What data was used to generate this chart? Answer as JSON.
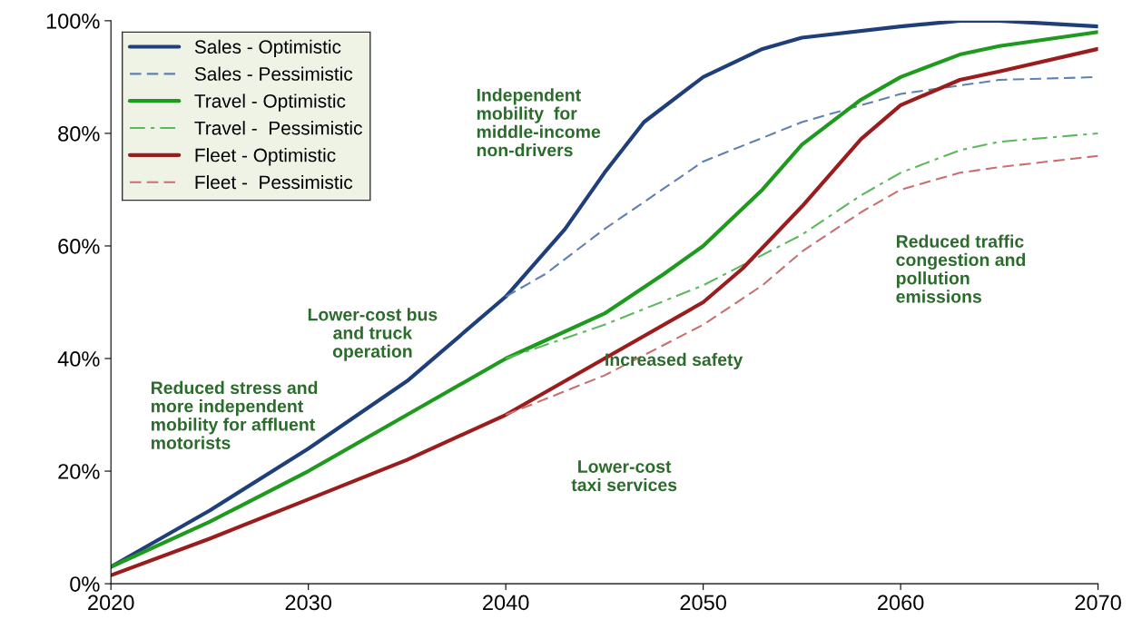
{
  "chart_data": {
    "type": "line",
    "legend": "top left",
    "grid": false,
    "xlim": [
      2020,
      2070
    ],
    "xticks": [
      2020,
      2030,
      2040,
      2050,
      2060,
      2070
    ],
    "ylim": [
      0,
      100
    ],
    "yticks": [
      {
        "value": 0,
        "label": "0%"
      },
      {
        "value": 20,
        "label": "20%"
      },
      {
        "value": 40,
        "label": "40%"
      },
      {
        "value": 60,
        "label": "60%"
      },
      {
        "value": 80,
        "label": "80%"
      },
      {
        "value": 100,
        "label": "100%"
      }
    ],
    "series": [
      {
        "name": "Sales - Optimistic",
        "color": "#1f3f7a",
        "line_style": "solid",
        "x": [
          2020,
          2025,
          2030,
          2035,
          2040,
          2043,
          2045,
          2047,
          2050,
          2053,
          2055,
          2060,
          2063,
          2065,
          2070
        ],
        "values": [
          3,
          13,
          24,
          36,
          51,
          63,
          73,
          82,
          90,
          95,
          97,
          99,
          100,
          100,
          99
        ]
      },
      {
        "name": "Sales - Pessimistic",
        "color": "#6080b0",
        "line_style": "dashed",
        "x": [
          2040,
          2042,
          2045,
          2050,
          2055,
          2060,
          2065,
          2070
        ],
        "values": [
          51,
          55,
          63,
          75,
          82,
          87,
          89.5,
          90
        ]
      },
      {
        "name": "Travel - Optimistic",
        "color": "#1e9a1e",
        "line_style": "solid",
        "x": [
          2020,
          2025,
          2030,
          2035,
          2040,
          2045,
          2048,
          2050,
          2053,
          2055,
          2058,
          2060,
          2063,
          2065,
          2070
        ],
        "values": [
          3,
          11,
          20,
          30,
          40,
          48,
          55,
          60,
          70,
          78,
          86,
          90,
          94,
          95.5,
          98
        ]
      },
      {
        "name": "Travel -  Pessimistic",
        "color": "#5cb85c",
        "line_style": "dashdot",
        "x": [
          2040,
          2045,
          2050,
          2055,
          2058,
          2060,
          2063,
          2065,
          2070
        ],
        "values": [
          40,
          46,
          53,
          62,
          69,
          73,
          77,
          78.5,
          80
        ]
      },
      {
        "name": "Fleet - Optimistic",
        "color": "#9b1c1c",
        "line_style": "solid",
        "x": [
          2020,
          2025,
          2030,
          2035,
          2040,
          2045,
          2050,
          2052,
          2055,
          2058,
          2060,
          2063,
          2065,
          2070
        ],
        "values": [
          1.5,
          8,
          15,
          22,
          30,
          40,
          50,
          56,
          67,
          79,
          85,
          89.5,
          91,
          95
        ]
      },
      {
        "name": "Fleet -  Pessimistic",
        "color": "#c87070",
        "line_style": "dashed",
        "x": [
          2040,
          2045,
          2050,
          2053,
          2055,
          2058,
          2060,
          2063,
          2065,
          2070
        ],
        "values": [
          30,
          37,
          46,
          53,
          59,
          66,
          70,
          73,
          74,
          76
        ]
      }
    ],
    "annotations": [
      "Reduced stress and\nmore independent\nmobility for affluent\nmotorists",
      "Lower-cost bus\nand truck\noperation",
      "Independent\nmobility  for\nmiddle-income\nnon-drivers",
      "Lower-cost\ntaxi services",
      "Increased safety",
      "Reduced traffic\ncongestion and\npollution\nemissions"
    ]
  }
}
